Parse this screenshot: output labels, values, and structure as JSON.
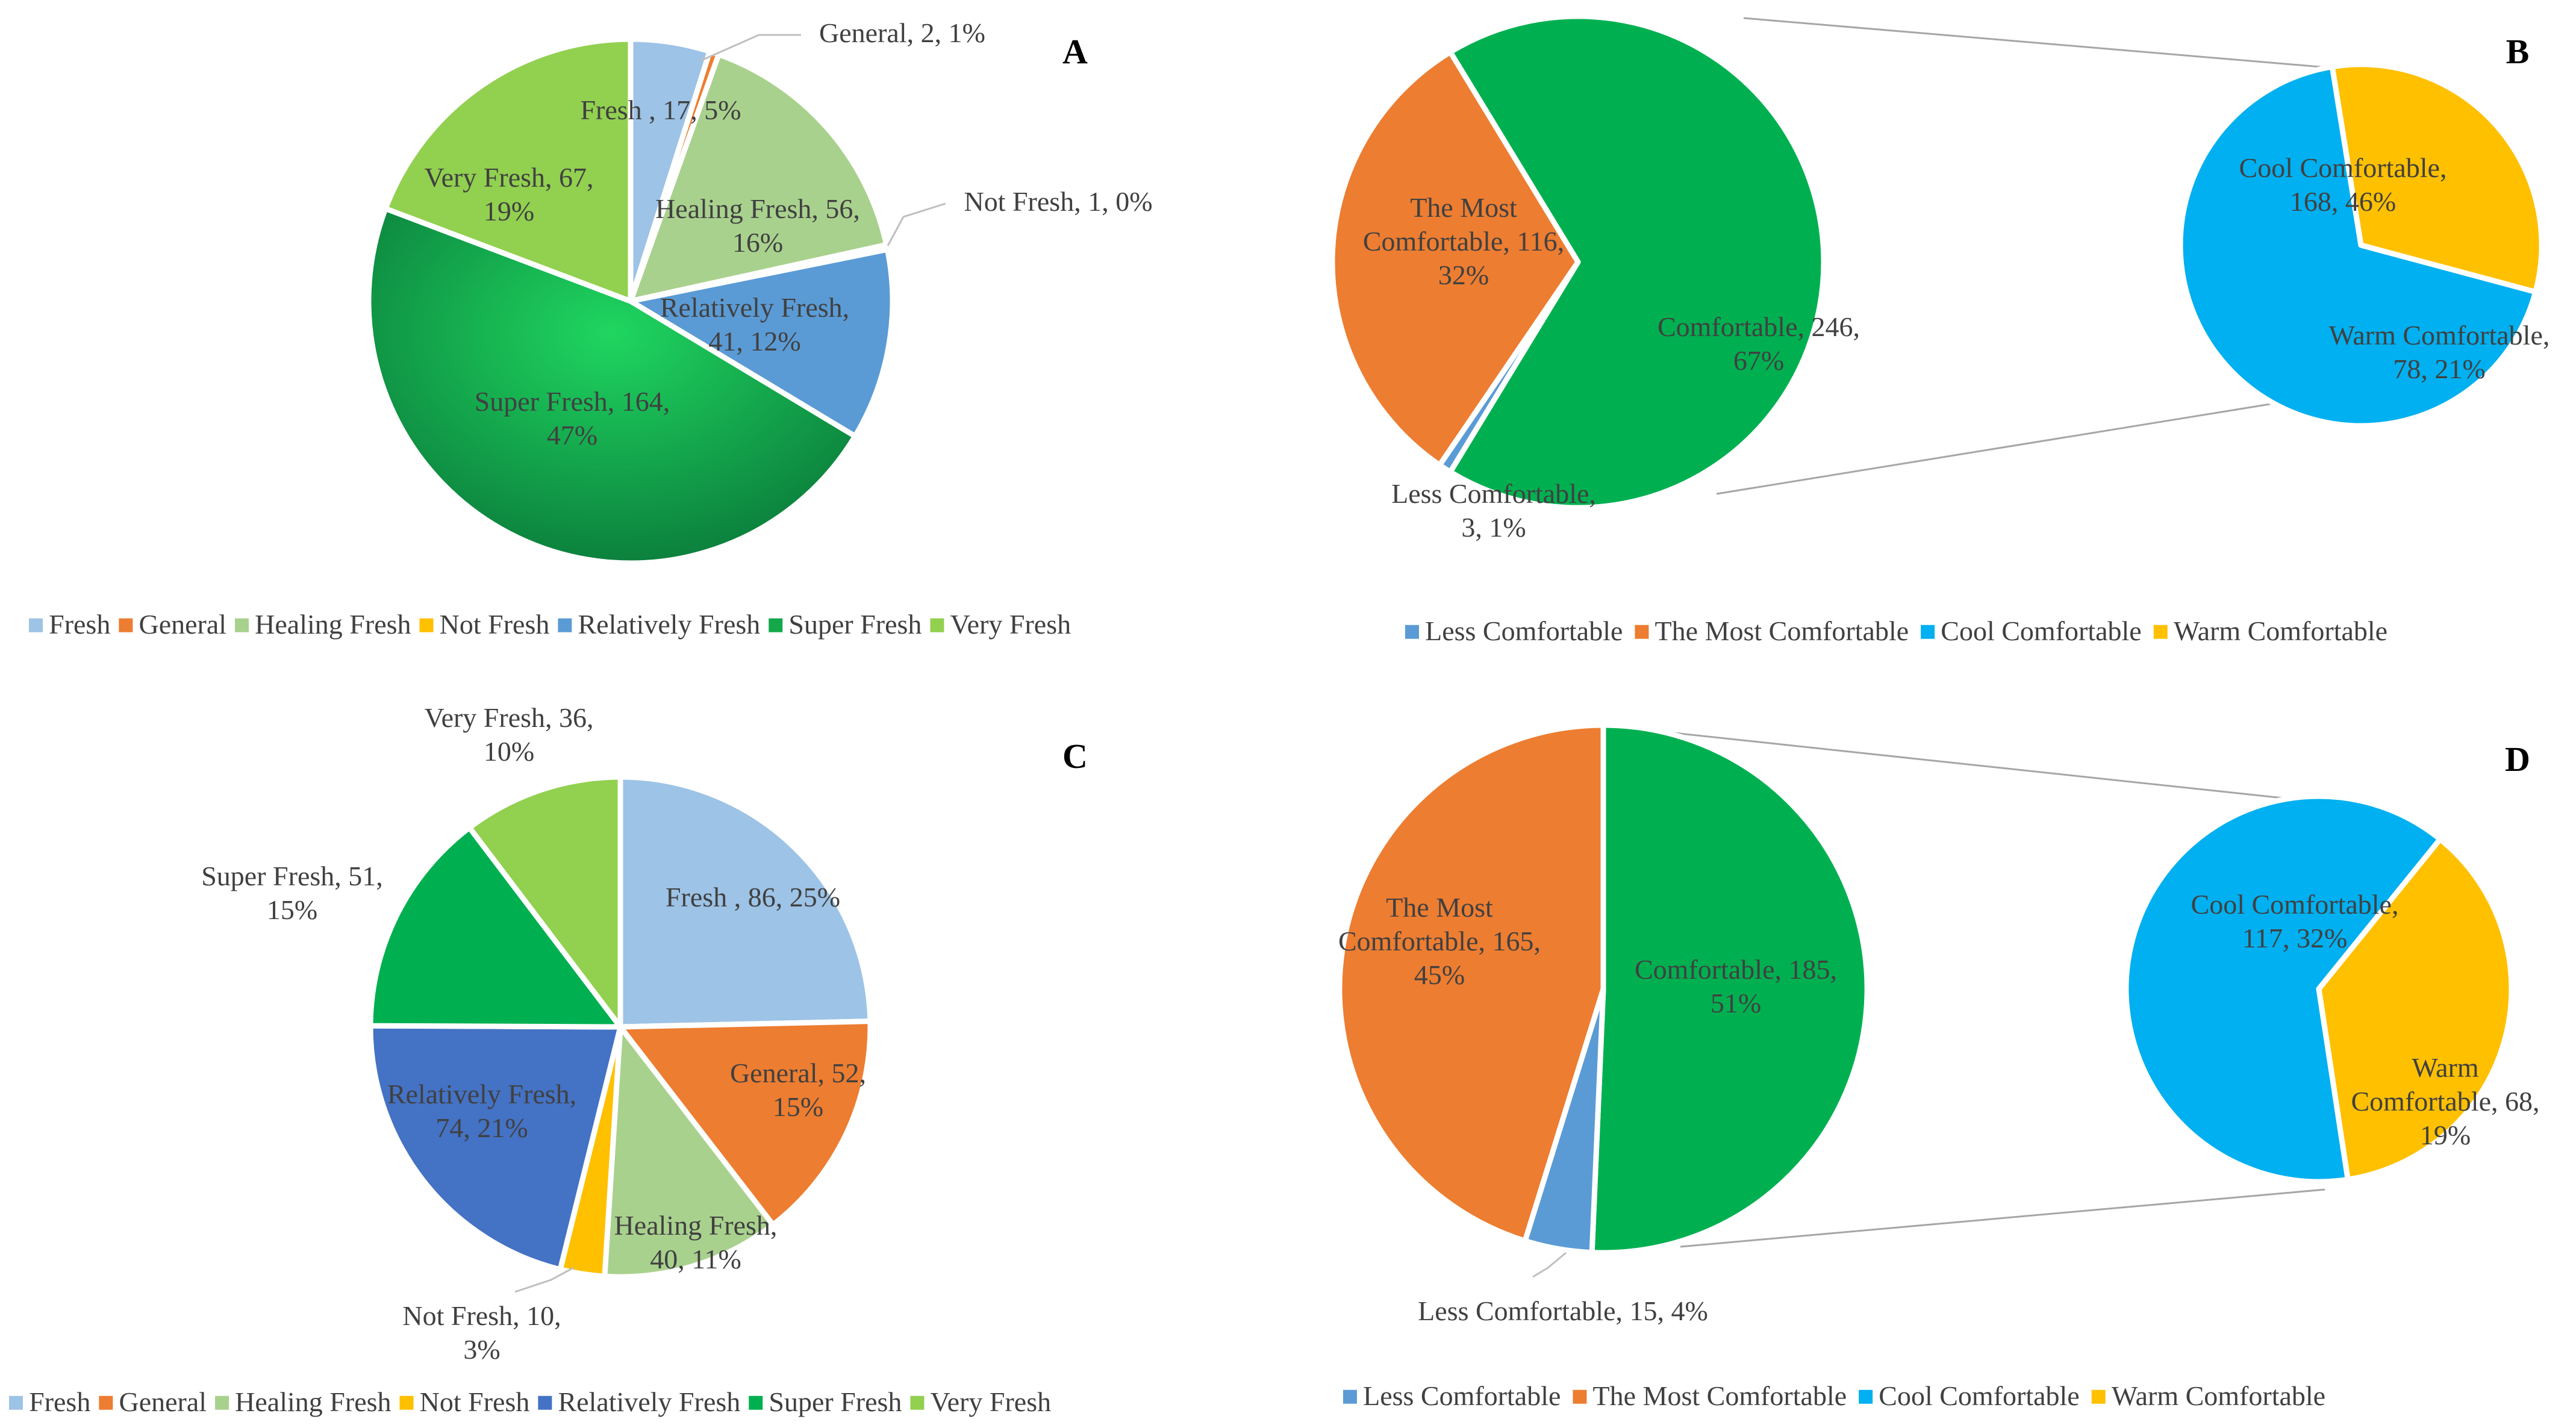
{
  "chart_data": [
    {
      "panel": "A",
      "type": "pie",
      "slices": [
        {
          "label": "Fresh",
          "value": 17,
          "percent": "5%",
          "color": "#9DC3E6",
          "text": [
            "Fresh , 17, 5%"
          ]
        },
        {
          "label": "General",
          "value": 2,
          "percent": "1%",
          "color": "#ED7D31",
          "text": [
            "General, 2, 1%"
          ]
        },
        {
          "label": "Healing Fresh",
          "value": 56,
          "percent": "16%",
          "color": "#A9D18E",
          "text": [
            "Healing Fresh, 56,",
            "16%"
          ]
        },
        {
          "label": "Not Fresh",
          "value": 1,
          "percent": "0%",
          "color": "#FFC000",
          "text": [
            "Not Fresh, 1, 0%"
          ]
        },
        {
          "label": "Relatively Fresh",
          "value": 41,
          "percent": "12%",
          "color": "#5B9BD5",
          "text": [
            "Relatively Fresh,",
            "41, 12%"
          ]
        },
        {
          "label": "Super Fresh",
          "value": 164,
          "percent": "47%",
          "color": "#14A84B",
          "text": [
            "Super Fresh, 164,",
            "47%"
          ]
        },
        {
          "label": "Very Fresh",
          "value": 67,
          "percent": "19%",
          "color": "#92D050",
          "text": [
            "Very Fresh, 67,",
            "19%"
          ]
        }
      ],
      "legend": [
        "Fresh",
        "General",
        "Healing Fresh",
        "Not Fresh",
        "Relatively Fresh",
        "Super Fresh",
        "Very Fresh"
      ]
    },
    {
      "panel": "B",
      "type": "pie",
      "subtype": "pie-of-pie",
      "main_slices": [
        {
          "label": "Less Comfortable",
          "value": 3,
          "percent": "1%",
          "color": "#5B9BD5",
          "text": [
            "Less Comfortable,",
            "3, 1%"
          ]
        },
        {
          "label": "The Most Comfortable",
          "value": 116,
          "percent": "32%",
          "color": "#ED7D31",
          "text": [
            "The Most",
            "Comfortable, 116,",
            "32%"
          ]
        },
        {
          "label": "Comfortable",
          "value": 246,
          "percent": "67%",
          "color": "#00B050",
          "text": [
            "Comfortable, 246,",
            "67%"
          ]
        }
      ],
      "sub_slices": [
        {
          "label": "Cool Comfortable",
          "value": 168,
          "percent": "46%",
          "color": "#00B0F0",
          "text": [
            "Cool Comfortable,",
            "168, 46%"
          ]
        },
        {
          "label": "Warm Comfortable",
          "value": 78,
          "percent": "21%",
          "color": "#FFC000",
          "text": [
            "Warm Comfortable,",
            "78, 21%"
          ]
        }
      ],
      "legend": [
        "Less Comfortable",
        "The Most Comfortable",
        "Cool Comfortable",
        "Warm Comfortable"
      ]
    },
    {
      "panel": "C",
      "type": "pie",
      "slices": [
        {
          "label": "Fresh",
          "value": 86,
          "percent": "25%",
          "color": "#9DC3E6",
          "text": [
            "Fresh , 86, 25%"
          ]
        },
        {
          "label": "General",
          "value": 52,
          "percent": "15%",
          "color": "#ED7D31",
          "text": [
            "General, 52,",
            "15%"
          ]
        },
        {
          "label": "Healing Fresh",
          "value": 40,
          "percent": "11%",
          "color": "#A9D18E",
          "text": [
            "Healing Fresh,",
            "40, 11%"
          ]
        },
        {
          "label": "Not Fresh",
          "value": 10,
          "percent": "3%",
          "color": "#FFC000",
          "text": [
            "Not Fresh, 10,",
            "3%"
          ]
        },
        {
          "label": "Relatively Fresh",
          "value": 74,
          "percent": "21%",
          "color": "#4472C4",
          "text": [
            "Relatively Fresh,",
            "74, 21%"
          ]
        },
        {
          "label": "Super Fresh",
          "value": 51,
          "percent": "15%",
          "color": "#00B050",
          "text": [
            "Super Fresh, 51,",
            "15%"
          ]
        },
        {
          "label": "Very Fresh",
          "value": 36,
          "percent": "10%",
          "color": "#92D050",
          "text": [
            "Very Fresh, 36,",
            "10%"
          ]
        }
      ],
      "legend": [
        "Fresh",
        "General",
        "Healing Fresh",
        "Not Fresh",
        "Relatively Fresh",
        "Super Fresh",
        "Very Fresh"
      ]
    },
    {
      "panel": "D",
      "type": "pie",
      "subtype": "pie-of-pie",
      "main_slices": [
        {
          "label": "Less Comfortable",
          "value": 15,
          "percent": "4%",
          "color": "#5B9BD5",
          "text": [
            "Less Comfortable, 15, 4%"
          ]
        },
        {
          "label": "The Most Comfortable",
          "value": 165,
          "percent": "45%",
          "color": "#ED7D31",
          "text": [
            "The Most",
            "Comfortable, 165,",
            "45%"
          ]
        },
        {
          "label": "Comfortable",
          "value": 185,
          "percent": "51%",
          "color": "#00B050",
          "text": [
            "Comfortable, 185,",
            "51%"
          ]
        }
      ],
      "sub_slices": [
        {
          "label": "Cool Comfortable",
          "value": 117,
          "percent": "32%",
          "color": "#00B0F0",
          "text": [
            "Cool Comfortable,",
            "117, 32%"
          ]
        },
        {
          "label": "Warm Comfortable",
          "value": 68,
          "percent": "19%",
          "color": "#FFC000",
          "text": [
            "Warm",
            "Comfortable, 68,",
            "19%"
          ]
        }
      ],
      "legend": [
        "Less Comfortable",
        "The Most Comfortable",
        "Cool Comfortable",
        "Warm Comfortable"
      ]
    }
  ]
}
